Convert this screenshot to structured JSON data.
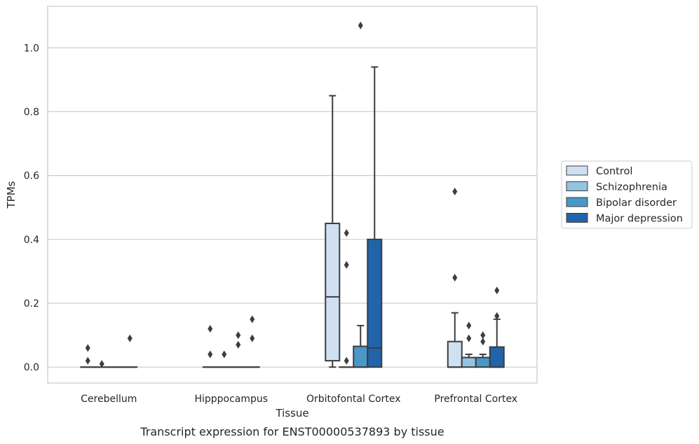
{
  "caption": "Transcript expression for ENST00000537893 by tissue",
  "chart_data": {
    "type": "box",
    "xlabel": "Tissue",
    "ylabel": "TPMs",
    "ylim": [
      -0.05,
      1.13
    ],
    "yticks": [
      0.0,
      0.2,
      0.4,
      0.6,
      0.8,
      1.0
    ],
    "ytick_labels": [
      "0.0",
      "0.2",
      "0.4",
      "0.6",
      "0.8",
      "1.0"
    ],
    "grid": true,
    "legend_position": "right",
    "categories": [
      "Cerebellum",
      "Hipppocampus",
      "Orbitofontal Cortex",
      "Prefrontal Cortex"
    ],
    "series": [
      {
        "name": "Control",
        "color": "#cfe0f2",
        "boxes": [
          {
            "q1": 0,
            "median": 0,
            "q3": 0,
            "whisker_low": 0,
            "whisker_high": 0,
            "outliers": [
              0.02,
              0.06
            ]
          },
          {
            "q1": 0,
            "median": 0,
            "q3": 0,
            "whisker_low": 0,
            "whisker_high": 0,
            "outliers": [
              0.04,
              0.12
            ]
          },
          {
            "q1": 0.02,
            "median": 0.22,
            "q3": 0.45,
            "whisker_low": 0.0,
            "whisker_high": 0.85,
            "outliers": []
          },
          {
            "q1": 0,
            "median": 0,
            "q3": 0.08,
            "whisker_low": 0,
            "whisker_high": 0.17,
            "outliers": [
              0.28,
              0.55
            ]
          }
        ]
      },
      {
        "name": "Schizophrenia",
        "color": "#94c4df",
        "boxes": [
          {
            "q1": 0,
            "median": 0,
            "q3": 0,
            "whisker_low": 0,
            "whisker_high": 0,
            "outliers": [
              0.01
            ]
          },
          {
            "q1": 0,
            "median": 0,
            "q3": 0,
            "whisker_low": 0,
            "whisker_high": 0,
            "outliers": [
              0.04
            ]
          },
          {
            "q1": 0,
            "median": 0,
            "q3": 0,
            "whisker_low": 0,
            "whisker_high": 0,
            "outliers": [
              0.02,
              0.32,
              0.42
            ]
          },
          {
            "q1": 0,
            "median": 0.03,
            "q3": 0.03,
            "whisker_low": 0,
            "whisker_high": 0.04,
            "outliers": [
              0.09,
              0.13
            ]
          }
        ]
      },
      {
        "name": "Bipolar disorder",
        "color": "#4a98c9",
        "boxes": [
          {
            "q1": 0,
            "median": 0,
            "q3": 0,
            "whisker_low": 0,
            "whisker_high": 0,
            "outliers": []
          },
          {
            "q1": 0,
            "median": 0,
            "q3": 0,
            "whisker_low": 0,
            "whisker_high": 0,
            "outliers": [
              0.07,
              0.1
            ]
          },
          {
            "q1": 0,
            "median": 0,
            "q3": 0.065,
            "whisker_low": 0,
            "whisker_high": 0.13,
            "outliers": [
              1.07
            ]
          },
          {
            "q1": 0,
            "median": 0.03,
            "q3": 0.03,
            "whisker_low": 0,
            "whisker_high": 0.04,
            "outliers": [
              0.08,
              0.1
            ]
          }
        ]
      },
      {
        "name": "Major depression",
        "color": "#2164ab",
        "boxes": [
          {
            "q1": 0,
            "median": 0,
            "q3": 0,
            "whisker_low": 0,
            "whisker_high": 0,
            "outliers": [
              0.09
            ]
          },
          {
            "q1": 0,
            "median": 0,
            "q3": 0,
            "whisker_low": 0,
            "whisker_high": 0,
            "outliers": [
              0.09,
              0.15
            ]
          },
          {
            "q1": 0,
            "median": 0.06,
            "q3": 0.4,
            "whisker_low": 0,
            "whisker_high": 0.94,
            "outliers": []
          },
          {
            "q1": 0,
            "median": 0,
            "q3": 0.063,
            "whisker_low": 0,
            "whisker_high": 0.15,
            "outliers": [
              0.16,
              0.24
            ]
          }
        ]
      }
    ]
  }
}
